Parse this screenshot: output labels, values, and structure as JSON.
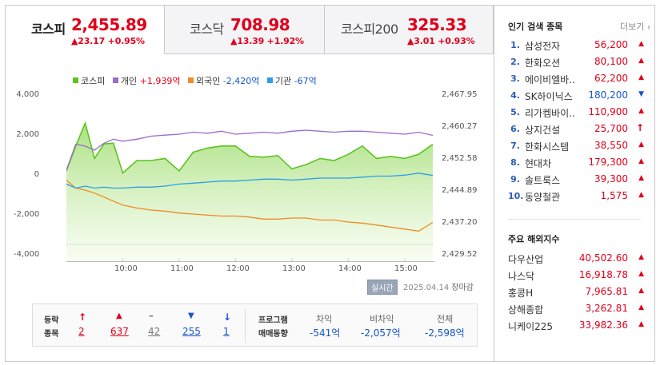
{
  "tabs": [
    {
      "name": "코스피",
      "value": "2,455.89",
      "change": "▲23.17 +0.95%"
    },
    {
      "name": "코스닥",
      "value": "708.98",
      "change": "▲13.39 +1.92%"
    },
    {
      "name": "코스피200",
      "value": "325.33",
      "change": "▲3.01 +0.93%"
    }
  ],
  "legend": {
    "kospi": "코스피",
    "individual_label": "개인",
    "individual_value": "+1,939억",
    "foreign_label": "외국인",
    "foreign_value": "-2,420억",
    "institution_label": "기관",
    "institution_value": "-67억"
  },
  "colors": {
    "kospi": "#5cc41f",
    "individual": "#9b6cc9",
    "foreign": "#f08a22",
    "institution": "#2c9ee6",
    "up": "#e0001b",
    "down": "#1554cc"
  },
  "axis": {
    "left": [
      "4,000",
      "2,000",
      "0",
      "-2,000",
      "-4,000"
    ],
    "right": [
      "2,467.95",
      "2,460.27",
      "2,452.58",
      "2,444.89",
      "2,437.20",
      "2,429.52"
    ],
    "x": [
      "10:00",
      "11:00",
      "12:00",
      "13:00",
      "14:00",
      "15:00"
    ]
  },
  "chart_data": {
    "type": "line",
    "x": [
      "09:00",
      "09:10",
      "09:20",
      "09:30",
      "09:40",
      "09:50",
      "10:00",
      "10:15",
      "10:30",
      "10:45",
      "11:00",
      "11:15",
      "11:30",
      "11:45",
      "12:00",
      "12:15",
      "12:30",
      "12:45",
      "13:00",
      "13:15",
      "13:30",
      "13:45",
      "14:00",
      "14:15",
      "14:30",
      "14:45",
      "15:00",
      "15:15",
      "15:30"
    ],
    "series": [
      {
        "name": "코스피",
        "axis": "right",
        "values": [
          2449.5,
          2455.5,
          2461.0,
          2452.5,
          2456.0,
          2456.2,
          2449.0,
          2452.0,
          2452.0,
          2452.5,
          2449.5,
          2454.0,
          2455.0,
          2455.5,
          2455.5,
          2453.0,
          2452.8,
          2453.2,
          2450.0,
          2451.0,
          2452.5,
          2452.0,
          2453.5,
          2455.5,
          2452.5,
          2453.0,
          2452.5,
          2453.5,
          2455.9
        ]
      },
      {
        "name": "개인",
        "axis": "left",
        "values": [
          200,
          1500,
          1400,
          1200,
          1550,
          1750,
          1650,
          1750,
          1900,
          1950,
          2000,
          2100,
          2050,
          2150,
          2000,
          2050,
          2100,
          2050,
          2150,
          2200,
          2150,
          2100,
          2150,
          2150,
          2100,
          2050,
          2000,
          2100,
          1939
        ]
      },
      {
        "name": "외국인",
        "axis": "left",
        "values": [
          -300,
          -700,
          -800,
          -950,
          -1150,
          -1350,
          -1550,
          -1700,
          -1800,
          -1850,
          -1950,
          -2000,
          -2050,
          -2100,
          -2100,
          -2150,
          -2250,
          -2250,
          -2200,
          -2200,
          -2300,
          -2300,
          -2400,
          -2450,
          -2550,
          -2650,
          -2750,
          -2850,
          -2420
        ]
      },
      {
        "name": "기관",
        "axis": "left",
        "values": [
          -500,
          -700,
          -600,
          -700,
          -650,
          -700,
          -700,
          -650,
          -650,
          -600,
          -500,
          -450,
          -400,
          -350,
          -350,
          -300,
          -250,
          -250,
          -300,
          -250,
          -200,
          -200,
          -200,
          -150,
          -100,
          -100,
          -50,
          50,
          -67
        ]
      }
    ],
    "ylim_left": [
      -4000,
      4000
    ],
    "ylim_right": [
      2429.52,
      2467.95
    ],
    "ylabel_left": "",
    "ylabel_right": "",
    "legend_position": "top-left"
  },
  "chart_footer": {
    "realtime": "실시간",
    "date": "2025.04.14",
    "status": "장마감"
  },
  "stats": {
    "label_line1": "등락",
    "label_line2": "종목",
    "upper_limit": "2",
    "up": "637",
    "unchanged": "42",
    "down": "255",
    "lower_limit": "1",
    "program_line1": "프로그램",
    "program_line2": "매매동향",
    "arb_label": "차익",
    "arb_value": "-541억",
    "nonarb_label": "비차익",
    "nonarb_value": "-2,057억",
    "total_label": "전체",
    "total_value": "-2,598억"
  },
  "popular": {
    "title": "인기 검색 종목",
    "more": "더보기",
    "items": [
      {
        "rank": "1.",
        "name": "삼성전자",
        "price": "56,200",
        "dir": "up"
      },
      {
        "rank": "2.",
        "name": "한화오션",
        "price": "80,100",
        "dir": "up"
      },
      {
        "rank": "3.",
        "name": "에이비엘바..",
        "price": "62,200",
        "dir": "up"
      },
      {
        "rank": "4.",
        "name": "SK하이닉스",
        "price": "180,200",
        "dir": "down"
      },
      {
        "rank": "5.",
        "name": "리가켐바이..",
        "price": "110,900",
        "dir": "up"
      },
      {
        "rank": "6.",
        "name": "상지건설",
        "price": "25,700",
        "dir": "upper"
      },
      {
        "rank": "7.",
        "name": "한화시스템",
        "price": "38,550",
        "dir": "up"
      },
      {
        "rank": "8.",
        "name": "현대차",
        "price": "179,300",
        "dir": "up"
      },
      {
        "rank": "9.",
        "name": "솔트룩스",
        "price": "39,300",
        "dir": "up"
      },
      {
        "rank": "10.",
        "name": "동양철관",
        "price": "1,575",
        "dir": "up"
      }
    ]
  },
  "overseas": {
    "title": "주요 해외지수",
    "items": [
      {
        "name": "다우산업",
        "value": "40,502.60"
      },
      {
        "name": "나스닥",
        "value": "16,918.78"
      },
      {
        "name": "홍콩H",
        "value": "7,965.81"
      },
      {
        "name": "상해종합",
        "value": "3,262.81"
      },
      {
        "name": "니케이225",
        "value": "33,982.36"
      }
    ]
  }
}
